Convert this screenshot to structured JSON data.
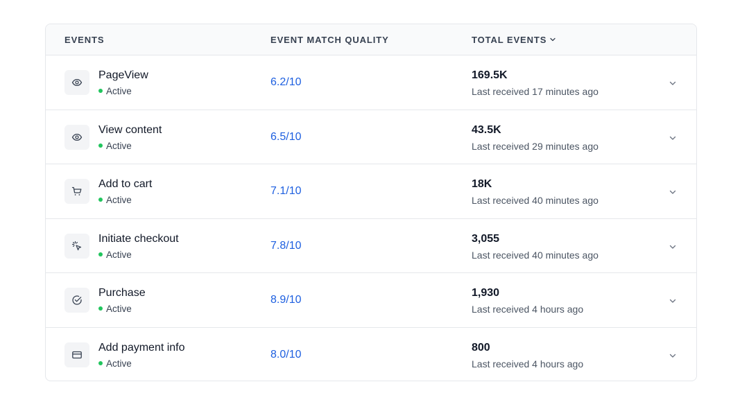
{
  "table": {
    "headers": {
      "events": "EVENTS",
      "quality": "EVENT MATCH QUALITY",
      "total": "TOTAL EVENTS"
    },
    "rows": [
      {
        "icon": "eye-icon",
        "name": "PageView",
        "status": "Active",
        "quality": "6.2/10",
        "total": "169.5K",
        "received": "Last received 17 minutes ago"
      },
      {
        "icon": "eye-icon",
        "name": "View content",
        "status": "Active",
        "quality": "6.5/10",
        "total": "43.5K",
        "received": "Last received 29 minutes ago"
      },
      {
        "icon": "cart-icon",
        "name": "Add to cart",
        "status": "Active",
        "quality": "7.1/10",
        "total": "18K",
        "received": "Last received 40 minutes ago"
      },
      {
        "icon": "cursor-click-icon",
        "name": "Initiate checkout",
        "status": "Active",
        "quality": "7.8/10",
        "total": "3,055",
        "received": "Last received 40 minutes ago"
      },
      {
        "icon": "check-circle-icon",
        "name": "Purchase",
        "status": "Active",
        "quality": "8.9/10",
        "total": "1,930",
        "received": "Last received 4 hours ago"
      },
      {
        "icon": "credit-card-icon",
        "name": "Add payment info",
        "status": "Active",
        "quality": "8.0/10",
        "total": "800",
        "received": "Last received 4 hours ago"
      }
    ]
  },
  "colors": {
    "quality_link": "#1d5fe0",
    "active_dot": "#22c55e",
    "header_bg": "#f9fafb",
    "icon_bg": "#f3f4f6"
  }
}
